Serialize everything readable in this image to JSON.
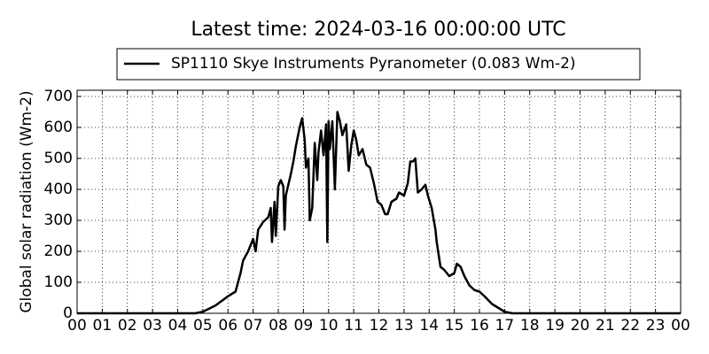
{
  "chart_data": {
    "type": "line",
    "title": "Latest time: 2024-03-16 00:00:00 UTC",
    "y_label": "Global solar radiation (Wm-2)",
    "x": [
      0,
      4.7,
      5.0,
      5.5,
      6.0,
      6.3,
      6.5,
      6.6,
      6.8,
      7.0,
      7.1,
      7.2,
      7.4,
      7.6,
      7.7,
      7.75,
      7.85,
      7.9,
      8.0,
      8.1,
      8.2,
      8.25,
      8.3,
      8.5,
      8.6,
      8.7,
      8.85,
      8.95,
      9.05,
      9.1,
      9.2,
      9.25,
      9.35,
      9.45,
      9.55,
      9.6,
      9.7,
      9.8,
      9.9,
      9.95,
      10.0,
      10.05,
      10.15,
      10.25,
      10.35,
      10.45,
      10.55,
      10.7,
      10.8,
      10.9,
      11.0,
      11.1,
      11.2,
      11.35,
      11.5,
      11.65,
      11.8,
      11.95,
      12.1,
      12.25,
      12.35,
      12.5,
      12.7,
      12.8,
      13.0,
      13.15,
      13.25,
      13.35,
      13.45,
      13.55,
      13.7,
      13.85,
      13.95,
      14.1,
      14.25,
      14.3,
      14.45,
      14.6,
      14.8,
      15.0,
      15.1,
      15.25,
      15.4,
      15.6,
      15.8,
      16.0,
      16.2,
      16.5,
      16.8,
      17.0,
      17.3,
      24
    ],
    "series": [
      {
        "name": "SP1110 Skye Instruments Pyranometer (0.083 Wm-2)",
        "color": "#000000",
        "values": [
          0,
          0,
          5,
          25,
          55,
          70,
          130,
          170,
          200,
          240,
          200,
          270,
          295,
          310,
          340,
          230,
          360,
          250,
          410,
          430,
          410,
          270,
          380,
          450,
          490,
          540,
          600,
          630,
          560,
          470,
          500,
          300,
          340,
          550,
          430,
          520,
          590,
          510,
          610,
          230,
          620,
          530,
          620,
          400,
          650,
          620,
          575,
          610,
          460,
          540,
          590,
          560,
          510,
          530,
          480,
          470,
          420,
          360,
          350,
          320,
          320,
          360,
          370,
          390,
          380,
          420,
          490,
          490,
          500,
          390,
          400,
          415,
          380,
          340,
          270,
          230,
          150,
          140,
          120,
          130,
          160,
          150,
          120,
          90,
          75,
          70,
          55,
          30,
          15,
          5,
          0,
          0
        ]
      }
    ],
    "xlim": [
      0,
      24
    ],
    "xticks": [
      {
        "value": 0,
        "label": "00"
      },
      {
        "value": 1,
        "label": "01"
      },
      {
        "value": 2,
        "label": "02"
      },
      {
        "value": 3,
        "label": "03"
      },
      {
        "value": 4,
        "label": "04"
      },
      {
        "value": 5,
        "label": "05"
      },
      {
        "value": 6,
        "label": "06"
      },
      {
        "value": 7,
        "label": "07"
      },
      {
        "value": 8,
        "label": "08"
      },
      {
        "value": 9,
        "label": "09"
      },
      {
        "value": 10,
        "label": "10"
      },
      {
        "value": 11,
        "label": "11"
      },
      {
        "value": 12,
        "label": "12"
      },
      {
        "value": 13,
        "label": "13"
      },
      {
        "value": 14,
        "label": "14"
      },
      {
        "value": 15,
        "label": "15"
      },
      {
        "value": 16,
        "label": "16"
      },
      {
        "value": 17,
        "label": "17"
      },
      {
        "value": 18,
        "label": "18"
      },
      {
        "value": 19,
        "label": "19"
      },
      {
        "value": 20,
        "label": "20"
      },
      {
        "value": 21,
        "label": "21"
      },
      {
        "value": 22,
        "label": "22"
      },
      {
        "value": 23,
        "label": "23"
      },
      {
        "value": 24,
        "label": "00"
      }
    ],
    "ylim": [
      0,
      720
    ],
    "yticks": [
      0,
      100,
      200,
      300,
      400,
      500,
      600,
      700
    ],
    "grid": true,
    "legend": "top"
  }
}
